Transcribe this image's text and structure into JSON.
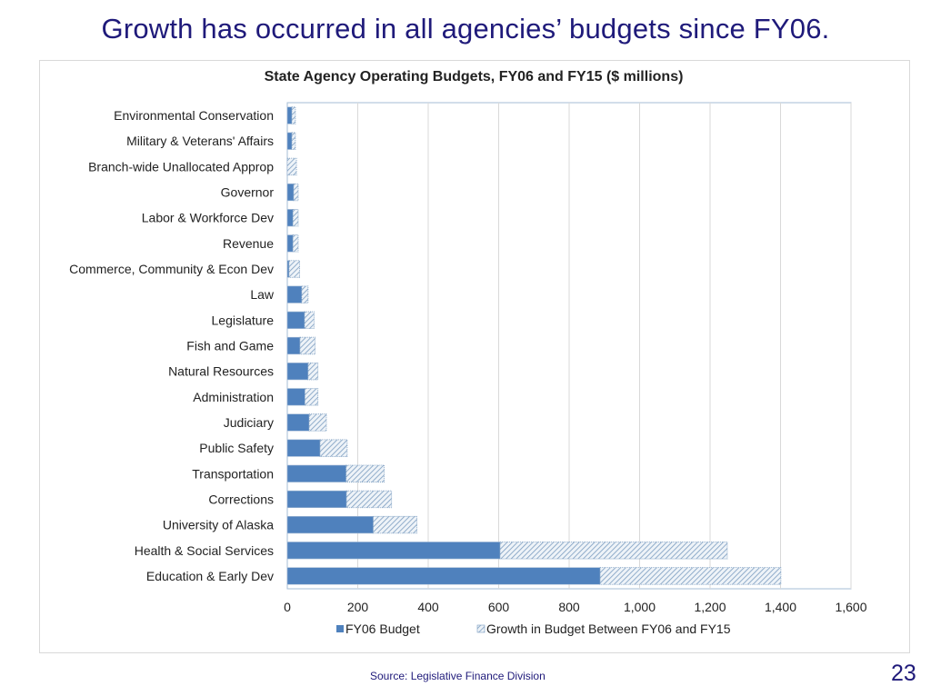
{
  "slide": {
    "title": "Growth has occurred in all agencies’ budgets since FY06.",
    "source": "Source:  Legislative Finance Division",
    "page_number": "23"
  },
  "colors": {
    "title_text": "#1f1a7a",
    "fy06_bar": "#4f81bd",
    "growth_hatch": "#7a9cc0",
    "gridline": "#d9d9d9"
  },
  "chart_data": {
    "type": "bar",
    "orientation": "horizontal",
    "stacked": true,
    "title": "State Agency Operating Budgets, FY06 and FY15 ($ millions)",
    "xlabel": "",
    "ylabel": "",
    "xlim": [
      0,
      1600
    ],
    "xticks": [
      0,
      200,
      400,
      600,
      800,
      1000,
      1200,
      1400,
      1600
    ],
    "xtick_labels": [
      "0",
      "200",
      "400",
      "600",
      "800",
      "1,000",
      "1,200",
      "1,400",
      "1,600"
    ],
    "grid": true,
    "legend_position": "bottom",
    "categories": [
      "Environmental Conservation",
      "Military & Veterans' Affairs",
      "Branch-wide Unallocated Approp",
      "Governor",
      "Labor & Workforce Dev",
      "Revenue",
      "Commerce, Community & Econ Dev",
      "Law",
      "Legislature",
      "Fish and Game",
      "Natural Resources",
      "Administration",
      "Judiciary",
      "Public Safety",
      "Transportation",
      "Corrections",
      "University of Alaska",
      "Health & Social Services",
      "Education & Early Dev"
    ],
    "series": [
      {
        "name": "FY06 Budget",
        "pattern": "solid",
        "values": [
          13,
          13,
          0,
          18,
          16,
          16,
          5,
          41,
          49,
          36,
          59,
          50,
          62,
          93,
          167,
          168,
          244,
          604,
          888
        ]
      },
      {
        "name": "Growth in Budget Between FY06 and FY15",
        "pattern": "hatched",
        "values": [
          10,
          10,
          26,
          13,
          15,
          15,
          30,
          18,
          27,
          43,
          28,
          37,
          49,
          77,
          108,
          128,
          124,
          645,
          513
        ]
      }
    ]
  }
}
